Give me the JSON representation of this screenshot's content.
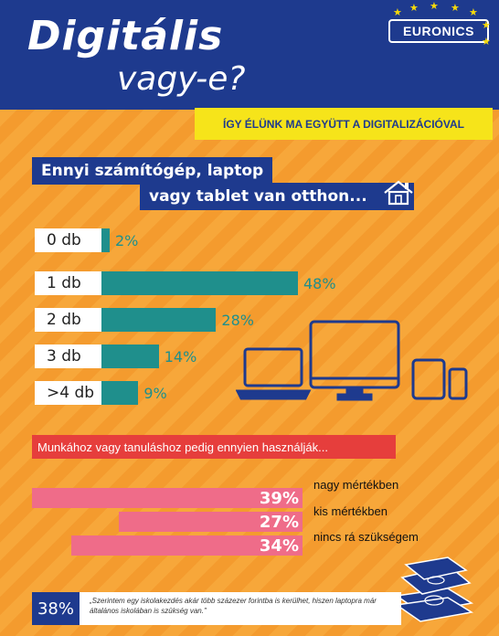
{
  "header": {
    "title_line1": "Digitális",
    "title_line2": "vagy-e?",
    "logo": "EURONICS",
    "subtitle": "ÍGY ÉLÜNK MA EGYÜTT A DIGITALIZÁCIÓVAL"
  },
  "question1": {
    "line1": "Ennyi számítógép, laptop",
    "line2": "vagy tablet van otthon..."
  },
  "devices_chart": {
    "rows": [
      {
        "label": "0 db",
        "pct": "2%",
        "value": 2
      },
      {
        "label": "1 db",
        "pct": "48%",
        "value": 48
      },
      {
        "label": "2 db",
        "pct": "28%",
        "value": 28
      },
      {
        "label": "3 db",
        "pct": "14%",
        "value": 14
      },
      {
        "label": ">4 db",
        "pct": "9%",
        "value": 9
      }
    ]
  },
  "question2": "Munkához vagy tanuláshoz pedig ennyien használják...",
  "usage": [
    {
      "pct": "39%",
      "label": "nagy mértékben"
    },
    {
      "pct": "27%",
      "label": "kis mértékben"
    },
    {
      "pct": "34%",
      "label": "nincs rá szükségem"
    }
  ],
  "quote": {
    "pct": "38%",
    "text": "„Szerintem egy iskolakezdés akár több százezer forintba is kerülhet, hiszen laptopra már általános iskolában is szükség van.\""
  },
  "colors": {
    "navy": "#1e3a8e",
    "teal": "#1f8f8c",
    "pink": "#ef6c89",
    "red": "#e63e3c",
    "yellow": "#f6e41a"
  }
}
